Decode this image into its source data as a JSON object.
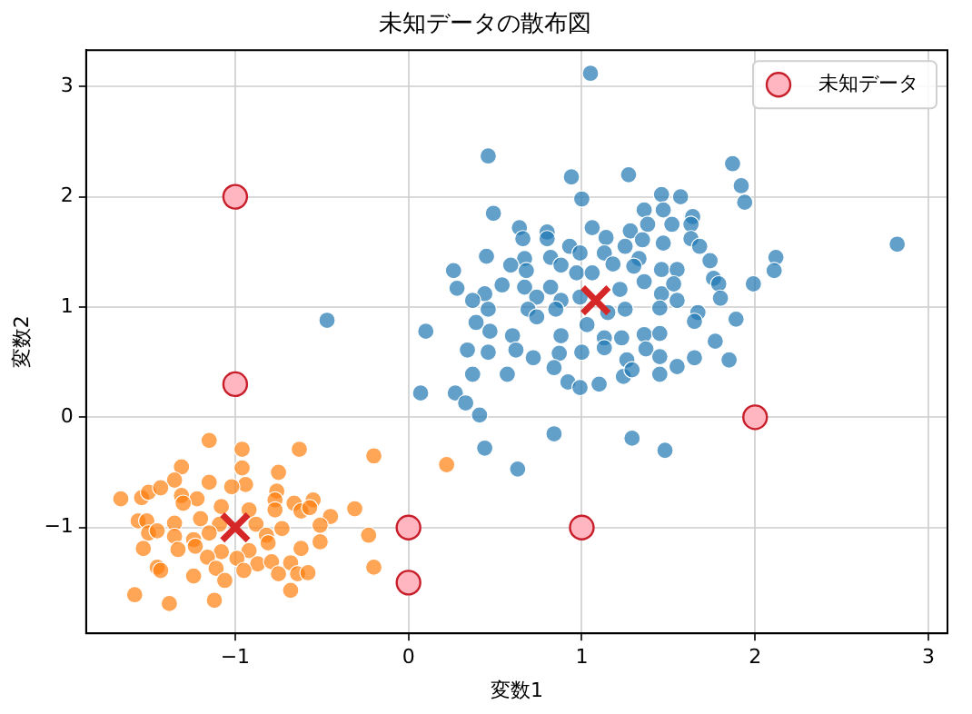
{
  "chart_data": {
    "type": "scatter",
    "title": "未知データの散布図",
    "xlabel": "変数1",
    "ylabel": "変数2",
    "xlim": [
      -1.86,
      3.11
    ],
    "ylim": [
      -1.96,
      3.33
    ],
    "xticks": [
      -1,
      0,
      1,
      2,
      3
    ],
    "yticks": [
      -1,
      0,
      1,
      2,
      3
    ],
    "grid": true,
    "legend": "top right",
    "marker": "circle",
    "series": [
      {
        "color": "#1f77b4",
        "x": [
          1.05,
          0.46,
          0.94,
          1.27,
          1.87,
          1.92,
          1.94,
          1.0,
          1.46,
          1.57,
          0.49,
          1.36,
          1.47,
          1.64,
          0.64,
          0.8,
          1.06,
          1.28,
          1.38,
          1.52,
          1.63,
          0.66,
          0.8,
          0.93,
          1.14,
          1.25,
          1.35,
          1.47,
          1.63,
          1.68,
          0.45,
          0.67,
          0.82,
          0.99,
          1.13,
          1.18,
          1.33,
          1.46,
          1.55,
          1.74,
          2.12,
          2.82,
          0.26,
          0.59,
          0.68,
          0.88,
          0.97,
          1.06,
          1.3,
          1.36,
          1.76,
          2.11,
          0.28,
          0.54,
          0.67,
          0.82,
          1.22,
          1.46,
          1.53,
          1.79,
          1.99,
          0.44,
          0.74,
          0.88,
          0.99,
          1.55,
          1.8,
          0.37,
          0.46,
          0.69,
          0.85,
          1.15,
          1.25,
          1.45,
          1.67,
          0.1,
          0.39,
          0.47,
          0.6,
          0.74,
          0.88,
          1.03,
          1.13,
          1.23,
          1.36,
          1.45,
          1.65,
          1.89,
          1.77,
          0.34,
          0.46,
          0.62,
          0.72,
          0.87,
          1.0,
          1.13,
          1.26,
          1.37,
          1.45,
          1.65,
          1.85,
          0.37,
          0.57,
          0.84,
          0.92,
          0.99,
          1.1,
          1.24,
          1.29,
          1.45,
          1.55,
          0.07,
          0.27,
          0.33,
          0.41,
          0.44,
          0.63,
          0.84,
          1.29,
          1.48,
          -0.47
        ],
        "values": [
          3.12,
          2.37,
          2.18,
          2.2,
          2.3,
          2.1,
          1.95,
          1.98,
          2.02,
          2.0,
          1.85,
          1.88,
          1.88,
          1.82,
          1.72,
          1.68,
          1.72,
          1.69,
          1.75,
          1.75,
          1.75,
          1.62,
          1.62,
          1.55,
          1.63,
          1.55,
          1.61,
          1.58,
          1.62,
          1.55,
          1.46,
          1.44,
          1.45,
          1.49,
          1.49,
          1.39,
          1.44,
          1.34,
          1.34,
          1.42,
          1.45,
          1.57,
          1.33,
          1.38,
          1.33,
          1.38,
          1.31,
          1.31,
          1.37,
          1.23,
          1.26,
          1.33,
          1.17,
          1.2,
          1.18,
          1.18,
          1.16,
          1.12,
          1.21,
          1.21,
          1.21,
          1.12,
          1.09,
          1.06,
          1.09,
          1.06,
          1.08,
          1.06,
          0.98,
          0.98,
          0.98,
          0.95,
          0.98,
          0.99,
          0.95,
          0.78,
          0.86,
          0.78,
          0.74,
          0.91,
          0.74,
          0.84,
          0.72,
          0.72,
          0.75,
          0.76,
          0.87,
          0.89,
          0.69,
          0.61,
          0.59,
          0.61,
          0.54,
          0.58,
          0.59,
          0.63,
          0.52,
          0.62,
          0.55,
          0.54,
          0.52,
          0.39,
          0.39,
          0.45,
          0.32,
          0.27,
          0.3,
          0.37,
          0.43,
          0.39,
          0.46,
          0.22,
          0.22,
          0.13,
          0.02,
          -0.28,
          -0.47,
          -0.15,
          -0.19,
          -0.3,
          0.88
        ]
      },
      {
        "color": "#ff7f0e",
        "x": [
          -1.15,
          -0.96,
          -0.63,
          -0.2,
          0.22,
          -1.31,
          -0.96,
          -0.75,
          -1.35,
          -1.15,
          -0.94,
          -1.66,
          -1.54,
          -1.5,
          -1.43,
          -1.31,
          -1.22,
          -1.02,
          -0.76,
          -0.77,
          -0.66,
          -0.55,
          -0.31,
          -1.3,
          -1.08,
          -0.92,
          -0.77,
          -0.62,
          -0.57,
          -0.45,
          -1.56,
          -1.51,
          -1.35,
          -1.2,
          -1.09,
          -0.88,
          -0.73,
          -0.51,
          -1.5,
          -1.45,
          -1.35,
          -1.24,
          -1.15,
          -0.82,
          -0.23,
          -0.51,
          -1.33,
          -1.23,
          -1.08,
          -0.92,
          -0.81,
          -0.62,
          -1.53,
          -1.16,
          -1.11,
          -0.99,
          -0.87,
          -0.95,
          -0.79,
          -0.68,
          -0.75,
          -0.64,
          -0.58,
          -0.2,
          -1.45,
          -1.43,
          -1.24,
          -1.06,
          -0.68,
          -1.58,
          -1.38,
          -1.12
        ],
        "values": [
          -0.21,
          -0.29,
          -0.29,
          -0.35,
          -0.43,
          -0.45,
          -0.46,
          -0.5,
          -0.57,
          -0.59,
          -0.61,
          -0.74,
          -0.73,
          -0.68,
          -0.64,
          -0.71,
          -0.74,
          -0.63,
          -0.67,
          -0.75,
          -0.78,
          -0.75,
          -0.83,
          -0.78,
          -0.81,
          -0.84,
          -0.84,
          -0.85,
          -0.82,
          -0.9,
          -0.94,
          -0.94,
          -0.96,
          -0.92,
          -0.97,
          -0.97,
          -1.01,
          -0.98,
          -1.05,
          -1.03,
          -1.08,
          -1.11,
          -1.05,
          -1.07,
          -1.07,
          -1.13,
          -1.2,
          -1.17,
          -1.22,
          -1.21,
          -1.14,
          -1.19,
          -1.19,
          -1.27,
          -1.37,
          -1.28,
          -1.33,
          -1.39,
          -1.31,
          -1.32,
          -1.42,
          -1.42,
          -1.41,
          -1.36,
          -1.36,
          -1.39,
          -1.44,
          -1.48,
          -1.57,
          -1.61,
          -1.69,
          -1.66
        ]
      },
      {
        "color": "#d62728",
        "marker": "cross",
        "x": [
          -1.0,
          1.08
        ],
        "values": [
          -1.0,
          1.06
        ]
      },
      {
        "name": "未知データ",
        "color": "#ffb6c1",
        "x": [
          -1,
          -1,
          0,
          0,
          1,
          2
        ],
        "values": [
          2,
          0.3,
          -1,
          -1.5,
          -1,
          0
        ]
      }
    ]
  }
}
